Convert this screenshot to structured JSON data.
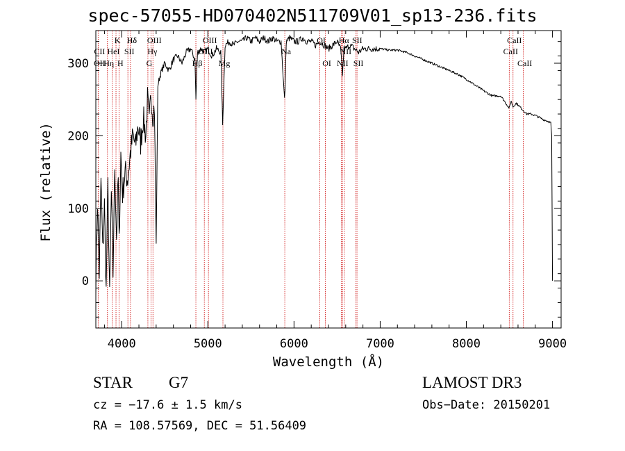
{
  "chart_data": {
    "type": "line",
    "title": "spec-57055-HD070402N511709V01_sp13-236.fits",
    "xlabel": "Wavelength (Å)",
    "ylabel": "Flux (relative)",
    "xlim": [
      3700,
      9100
    ],
    "ylim": [
      -65,
      345
    ],
    "xticks": [
      4000,
      5000,
      6000,
      7000,
      8000,
      9000
    ],
    "xtick_labels": [
      "4000",
      "5000",
      "6000",
      "7000",
      "8000",
      "9000"
    ],
    "yticks": [
      0,
      100,
      200,
      300
    ],
    "ytick_labels": [
      "0",
      "100",
      "200",
      "300"
    ],
    "series": [
      {
        "name": "flux",
        "x": [
          3700,
          3720,
          3740,
          3760,
          3780,
          3800,
          3820,
          3840,
          3860,
          3880,
          3900,
          3920,
          3940,
          3960,
          3970,
          3990,
          4010,
          4040,
          4070,
          4100,
          4130,
          4160,
          4190,
          4220,
          4250,
          4280,
          4300,
          4320,
          4340,
          4360,
          4380,
          4400,
          4420,
          4450,
          4500,
          4550,
          4600,
          4650,
          4700,
          4750,
          4800,
          4850,
          4861,
          4880,
          4920,
          4960,
          5000,
          5050,
          5100,
          5150,
          5172,
          5183,
          5200,
          5250,
          5300,
          5350,
          5400,
          5450,
          5500,
          5550,
          5600,
          5650,
          5700,
          5750,
          5800,
          5850,
          5890,
          5896,
          5910,
          5950,
          6000,
          6050,
          6100,
          6150,
          6200,
          6250,
          6300,
          6350,
          6400,
          6450,
          6500,
          6540,
          6563,
          6580,
          6600,
          6650,
          6700,
          6750,
          6800,
          6900,
          7000,
          7100,
          7200,
          7300,
          7400,
          7500,
          7600,
          7700,
          7800,
          7900,
          8000,
          8100,
          8200,
          8300,
          8400,
          8498,
          8520,
          8542,
          8580,
          8620,
          8662,
          8700,
          8750,
          8800,
          8850,
          8900,
          8950,
          8980,
          8990,
          9000
        ],
        "y": [
          0,
          110,
          10,
          140,
          40,
          105,
          -15,
          130,
          -25,
          120,
          10,
          160,
          60,
          140,
          50,
          175,
          120,
          150,
          140,
          175,
          200,
          185,
          215,
          190,
          225,
          200,
          250,
          215,
          260,
          230,
          240,
          50,
          270,
          285,
          300,
          290,
          305,
          310,
          300,
          315,
          320,
          305,
          250,
          315,
          320,
          315,
          320,
          310,
          320,
          315,
          215,
          260,
          325,
          330,
          325,
          330,
          330,
          335,
          330,
          335,
          330,
          335,
          330,
          335,
          330,
          330,
          250,
          265,
          330,
          335,
          330,
          330,
          335,
          330,
          330,
          325,
          330,
          325,
          320,
          325,
          330,
          320,
          285,
          320,
          320,
          325,
          320,
          315,
          320,
          320,
          320,
          318,
          318,
          315,
          310,
          305,
          300,
          295,
          290,
          285,
          278,
          270,
          262,
          255,
          255,
          238,
          248,
          240,
          245,
          240,
          235,
          230,
          230,
          228,
          225,
          222,
          220,
          218,
          200,
          0
        ]
      }
    ],
    "line_ids": [
      {
        "label": "Hδ",
        "wave": 4102,
        "row": 0
      },
      {
        "label": "K",
        "wave": 3934,
        "row": 0
      },
      {
        "label": "Hδ",
        "wave": 4102,
        "row": 0
      },
      {
        "label": "OIII",
        "wave": 4363,
        "row": 0
      },
      {
        "label": "OIII",
        "wave": 5007,
        "row": 0
      },
      {
        "label": "OI",
        "wave": 6300,
        "row": 0
      },
      {
        "label": "Hα",
        "wave": 6563,
        "row": 0
      },
      {
        "label": "SII",
        "wave": 6717,
        "row": 0
      },
      {
        "label": "CaII",
        "wave": 8542,
        "row": 0
      },
      {
        "label": "CII",
        "wave": 3727,
        "row": 1
      },
      {
        "label": "HeI",
        "wave": 3889,
        "row": 1
      },
      {
        "label": "SII",
        "wave": 4072,
        "row": 1
      },
      {
        "label": "Hγ",
        "wave": 4340,
        "row": 1
      },
      {
        "label": "OIII",
        "wave": 4959,
        "row": 1
      },
      {
        "label": "Na",
        "wave": 5893,
        "row": 1
      },
      {
        "label": "NII",
        "wave": 6584,
        "row": 1
      },
      {
        "label": "CaII",
        "wave": 8498,
        "row": 1
      },
      {
        "label": "OII",
        "wave": 3727,
        "row": 2
      },
      {
        "label": "Hη",
        "wave": 3835,
        "row": 2
      },
      {
        "label": "H",
        "wave": 3969,
        "row": 2
      },
      {
        "label": "G",
        "wave": 4304,
        "row": 2
      },
      {
        "label": "Hβ",
        "wave": 4861,
        "row": 2
      },
      {
        "label": "Mg",
        "wave": 5175,
        "row": 2
      },
      {
        "label": "OI",
        "wave": 6364,
        "row": 2
      },
      {
        "label": "NII",
        "wave": 6548,
        "row": 2
      },
      {
        "label": "SII",
        "wave": 6731,
        "row": 2
      },
      {
        "label": "CaII",
        "wave": 8662,
        "row": 2
      }
    ],
    "line_marks": [
      3727,
      3835,
      3889,
      3934,
      3969,
      4072,
      4102,
      4304,
      4340,
      4363,
      4861,
      4959,
      5007,
      5175,
      5893,
      6300,
      6364,
      6548,
      6563,
      6584,
      6717,
      6731,
      8498,
      8542,
      8662
    ]
  },
  "info": {
    "obj_type": "STAR",
    "subclass": "G7",
    "survey": "LAMOST DR3",
    "cz": "cz = −17.6 ± 1.5 km/s",
    "obs_date": "Obs−Date: 20150201",
    "radec": "RA = 108.57569, DEC =  51.56409"
  },
  "colors": {
    "line_marker": "#cc0000",
    "spectrum": "#000000",
    "axes": "#000000"
  }
}
